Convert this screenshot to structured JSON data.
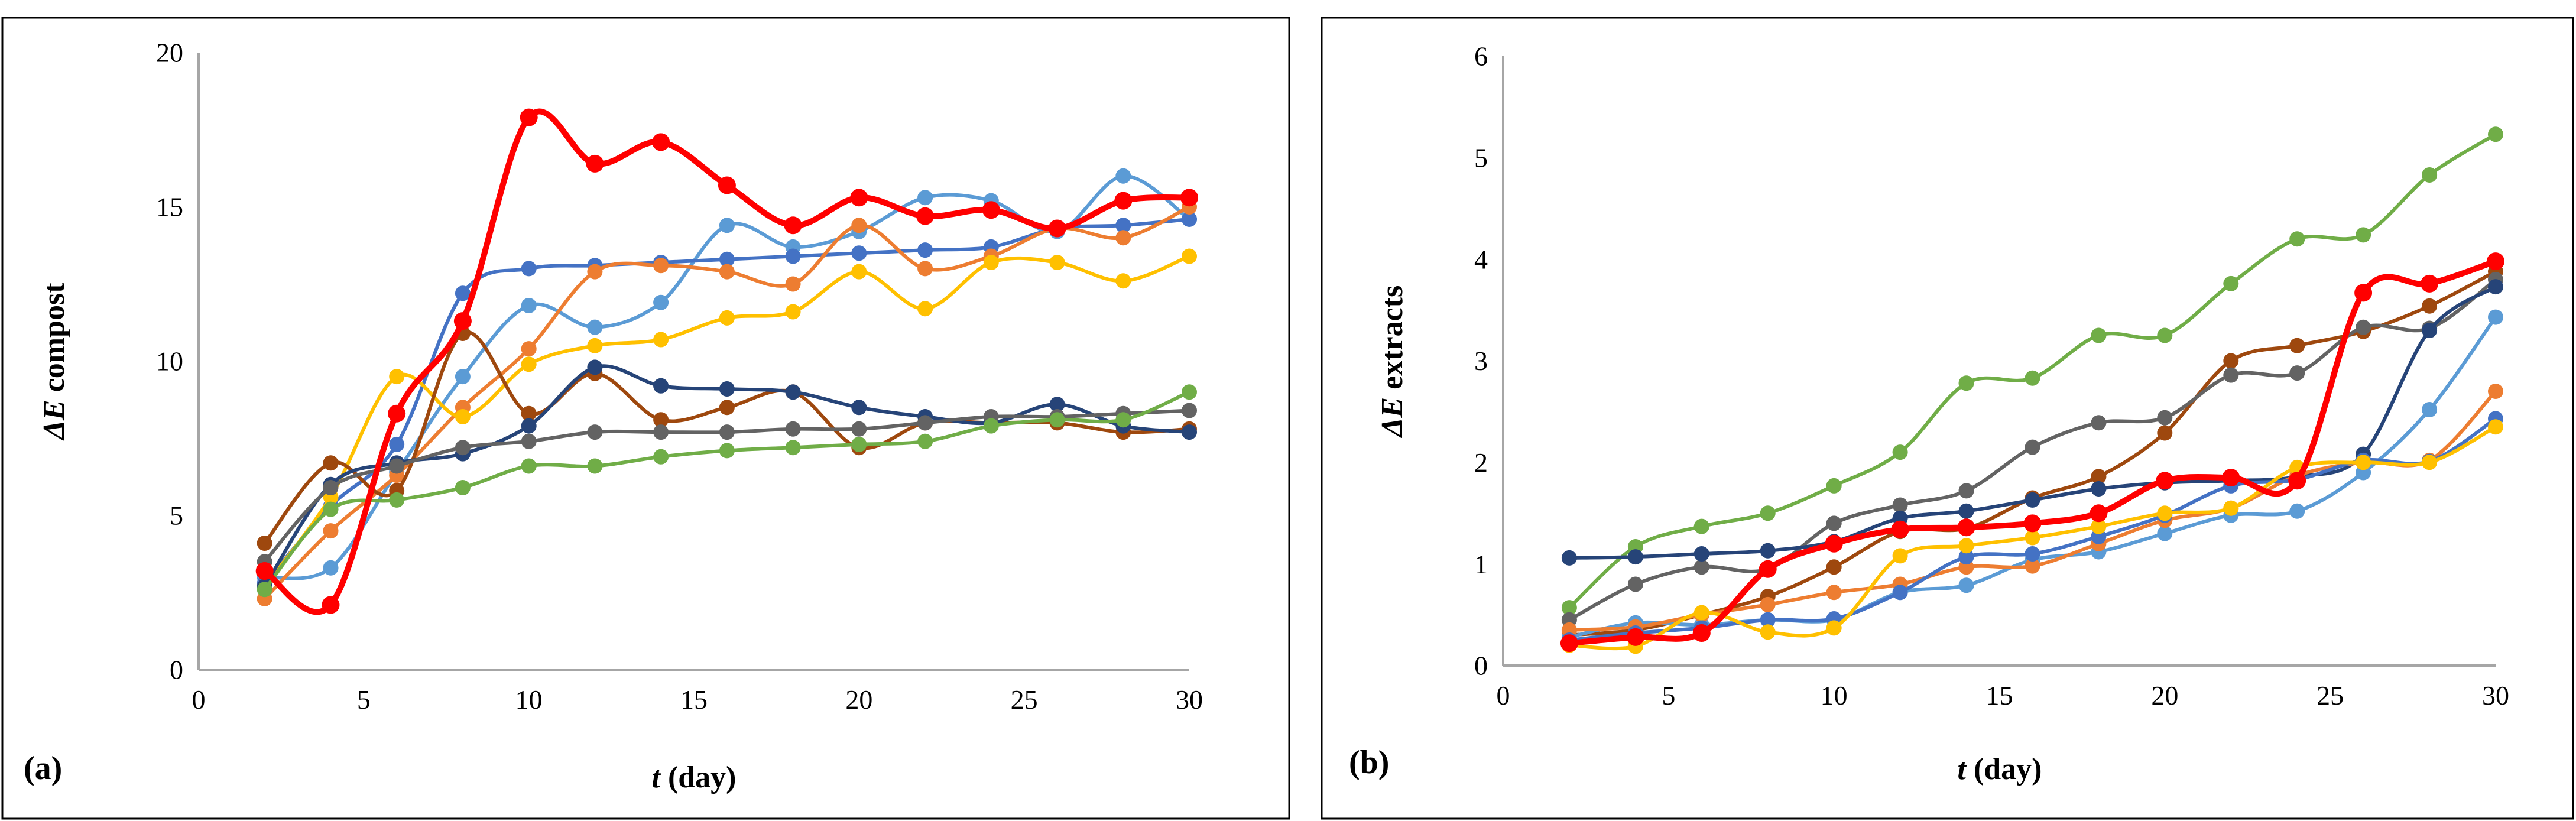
{
  "chart_data": [
    {
      "type": "line",
      "panel_label": "(a)",
      "ylabel_symbol": "ΔE",
      "ylabel_rest": " compost",
      "xlabel_symbol": "t",
      "xlabel_rest": " (day)",
      "xlim": [
        0,
        30
      ],
      "ylim": [
        0,
        20
      ],
      "xticks": [
        0,
        5,
        10,
        15,
        20,
        25,
        30
      ],
      "yticks": [
        0,
        5,
        10,
        15,
        20
      ],
      "x": [
        2,
        4,
        6,
        8,
        10,
        12,
        14,
        16,
        18,
        20,
        22,
        24,
        26,
        28,
        30
      ],
      "series": [
        {
          "color": "#FF0000",
          "emphasis": true,
          "values": [
            3.2,
            2.1,
            8.3,
            11.3,
            17.9,
            16.4,
            17.1,
            15.7,
            14.4,
            15.3,
            14.7,
            14.9,
            14.3,
            15.2,
            15.3
          ]
        },
        {
          "color": "#5B9BD5",
          "values": [
            3.0,
            3.3,
            6.4,
            9.5,
            11.8,
            11.1,
            11.9,
            14.4,
            13.7,
            14.2,
            15.3,
            15.2,
            14.2,
            16.0,
            14.6
          ]
        },
        {
          "color": "#4472C4",
          "values": [
            2.8,
            5.3,
            7.3,
            12.2,
            13.0,
            13.1,
            13.2,
            13.3,
            13.4,
            13.5,
            13.6,
            13.7,
            14.3,
            14.4,
            14.6
          ]
        },
        {
          "color": "#ED7D31",
          "values": [
            2.3,
            4.5,
            6.3,
            8.5,
            10.4,
            12.9,
            13.1,
            12.9,
            12.5,
            14.4,
            13.0,
            13.4,
            14.3,
            14.0,
            15.0
          ]
        },
        {
          "color": "#FFC000",
          "values": [
            2.7,
            5.6,
            9.5,
            8.2,
            9.9,
            10.5,
            10.7,
            11.4,
            11.6,
            12.9,
            11.7,
            13.2,
            13.2,
            12.6,
            13.4
          ]
        },
        {
          "color": "#9E480E",
          "values": [
            4.1,
            6.7,
            5.8,
            10.9,
            8.3,
            9.6,
            8.1,
            8.5,
            9.0,
            7.2,
            8.0,
            8.0,
            8.0,
            7.7,
            7.8
          ]
        },
        {
          "color": "#264478",
          "values": [
            2.7,
            6.0,
            6.7,
            7.0,
            7.9,
            9.8,
            9.2,
            9.1,
            9.0,
            8.5,
            8.2,
            8.0,
            8.6,
            7.9,
            7.7
          ]
        },
        {
          "color": "#636363",
          "values": [
            3.5,
            5.9,
            6.6,
            7.2,
            7.4,
            7.7,
            7.7,
            7.7,
            7.8,
            7.8,
            8.0,
            8.2,
            8.2,
            8.3,
            8.4
          ]
        },
        {
          "color": "#70AD47",
          "values": [
            2.6,
            5.2,
            5.5,
            5.9,
            6.6,
            6.6,
            6.9,
            7.1,
            7.2,
            7.3,
            7.4,
            7.9,
            8.1,
            8.1,
            9.0
          ]
        }
      ]
    },
    {
      "type": "line",
      "panel_label": "(b)",
      "ylabel_symbol": "ΔE",
      "ylabel_rest": " extracts",
      "xlabel_symbol": "t",
      "xlabel_rest": " (day)",
      "xlim": [
        0,
        30
      ],
      "ylim": [
        0,
        6
      ],
      "xticks": [
        0,
        5,
        10,
        15,
        20,
        25,
        30
      ],
      "yticks": [
        0,
        1,
        2,
        3,
        4,
        5,
        6
      ],
      "x": [
        2,
        4,
        6,
        8,
        10,
        12,
        14,
        16,
        18,
        20,
        22,
        24,
        26,
        28,
        30
      ],
      "series": [
        {
          "color": "#70AD47",
          "values": [
            0.57,
            1.17,
            1.37,
            1.5,
            1.77,
            2.1,
            2.78,
            2.83,
            3.25,
            3.25,
            3.76,
            4.2,
            4.24,
            4.83,
            5.23
          ]
        },
        {
          "color": "#FF0000",
          "emphasis": true,
          "values": [
            0.22,
            0.28,
            0.32,
            0.95,
            1.2,
            1.34,
            1.36,
            1.4,
            1.5,
            1.82,
            1.85,
            1.82,
            3.67,
            3.76,
            3.98
          ]
        },
        {
          "color": "#9E480E",
          "values": [
            0.3,
            0.35,
            0.5,
            0.68,
            0.97,
            1.32,
            1.35,
            1.65,
            1.86,
            2.29,
            3.0,
            3.15,
            3.29,
            3.54,
            3.88
          ]
        },
        {
          "color": "#636363",
          "values": [
            0.45,
            0.8,
            0.97,
            0.95,
            1.4,
            1.58,
            1.72,
            2.15,
            2.39,
            2.44,
            2.86,
            2.88,
            3.33,
            3.32,
            3.8
          ]
        },
        {
          "color": "#264478",
          "values": [
            1.06,
            1.07,
            1.1,
            1.13,
            1.22,
            1.45,
            1.52,
            1.63,
            1.74,
            1.8,
            1.82,
            1.86,
            2.08,
            3.3,
            3.73
          ]
        },
        {
          "color": "#5B9BD5",
          "values": [
            0.28,
            0.42,
            0.4,
            0.45,
            0.45,
            0.72,
            0.79,
            1.04,
            1.12,
            1.3,
            1.48,
            1.52,
            1.9,
            2.52,
            3.43
          ]
        },
        {
          "color": "#ED7D31",
          "values": [
            0.35,
            0.38,
            0.5,
            0.6,
            0.72,
            0.8,
            0.97,
            0.98,
            1.2,
            1.43,
            1.55,
            1.87,
            2.0,
            2.02,
            2.7
          ]
        },
        {
          "color": "#4472C4",
          "values": [
            0.25,
            0.32,
            0.37,
            0.45,
            0.46,
            0.72,
            1.07,
            1.1,
            1.27,
            1.48,
            1.77,
            1.83,
            2.02,
            2.01,
            2.43
          ]
        },
        {
          "color": "#FFC000",
          "values": [
            0.2,
            0.19,
            0.52,
            0.33,
            0.37,
            1.08,
            1.18,
            1.26,
            1.37,
            1.5,
            1.55,
            1.95,
            2.0,
            2.0,
            2.35
          ]
        }
      ]
    }
  ]
}
